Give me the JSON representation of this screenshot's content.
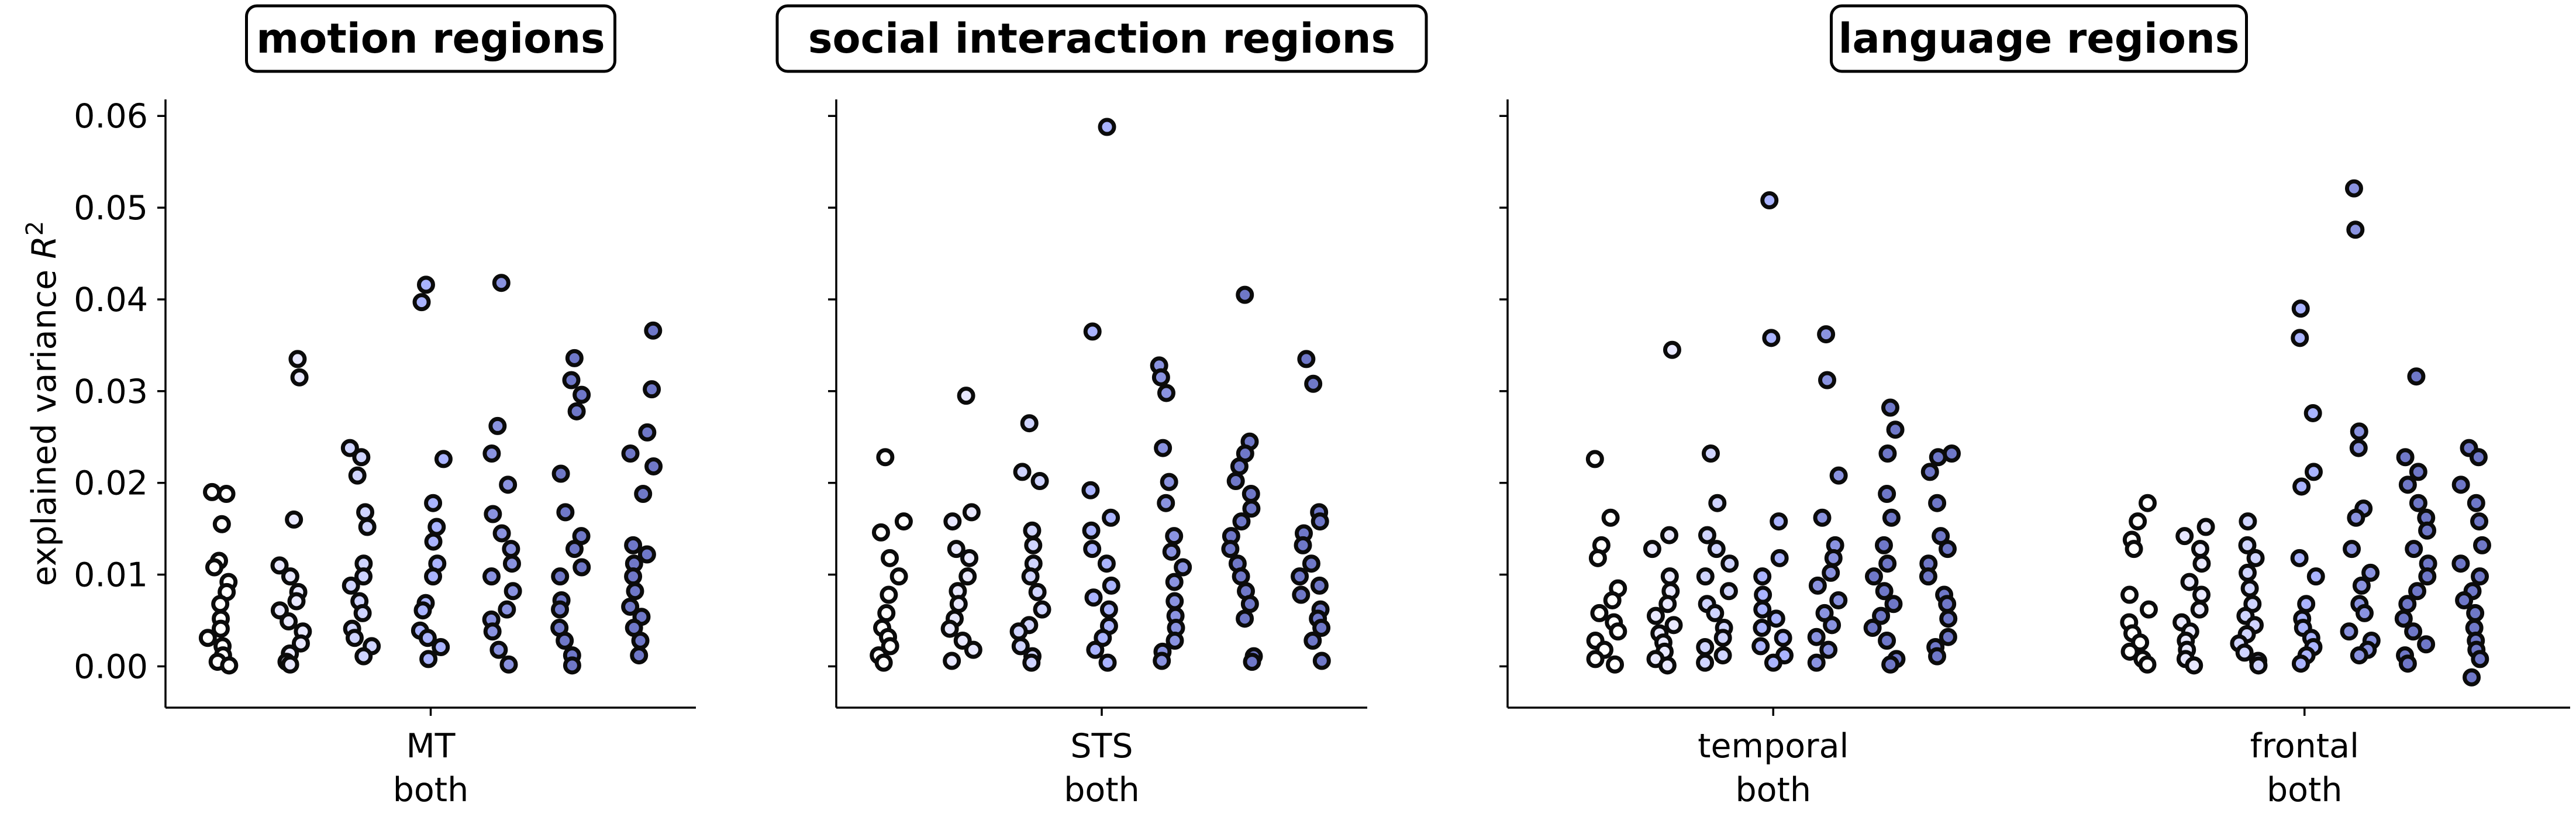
{
  "chart_data": {
    "type": "scatter",
    "ylabel": "explained variance R²",
    "ylabel_text": "explained variance ",
    "ylabel_symbol": "R",
    "ylabel_exp": "2",
    "ylim": [
      -0.0045,
      0.0618
    ],
    "yticks": [
      "0.00",
      "0.01",
      "0.02",
      "0.03",
      "0.04",
      "0.05",
      "0.06"
    ],
    "ytick_values": [
      0.0,
      0.01,
      0.02,
      0.03,
      0.04,
      0.05,
      0.06
    ],
    "shared_y": true,
    "grid": false,
    "marker_color": "#1a1a2e",
    "marker_face_colors": [
      "#ffffff",
      "#e8e8ff",
      "#cfd4ff",
      "#aab4ff",
      "#8a93e0",
      "#6f78c8"
    ],
    "panels": [
      {
        "title": "motion regions",
        "groups": [
          {
            "label_top": "MT",
            "label_bottom": "both",
            "series": [
              {
                "values": [
                  0.019,
                  0.0188,
                  0.0155,
                  0.0115,
                  0.0108,
                  0.0092,
                  0.0081,
                  0.0068,
                  0.0052,
                  0.0041,
                  0.0031,
                  0.0022,
                  0.0012,
                  0.0005,
                  0.0001
                ]
              },
              {
                "values": [
                  0.0335,
                  0.0315,
                  0.016,
                  0.011,
                  0.0098,
                  0.0081,
                  0.0071,
                  0.0061,
                  0.0049,
                  0.0038,
                  0.0025,
                  0.0014,
                  0.0005,
                  0.0002
                ]
              },
              {
                "values": [
                  0.0238,
                  0.0228,
                  0.0208,
                  0.0168,
                  0.0152,
                  0.0112,
                  0.0098,
                  0.0088,
                  0.0071,
                  0.0058,
                  0.0041,
                  0.0031,
                  0.0022,
                  0.0011
                ]
              },
              {
                "values": [
                  0.0416,
                  0.0397,
                  0.0226,
                  0.0178,
                  0.0152,
                  0.0136,
                  0.0112,
                  0.0098,
                  0.0069,
                  0.0061,
                  0.0039,
                  0.0031,
                  0.0021,
                  0.0008
                ]
              },
              {
                "values": [
                  0.0418,
                  0.0262,
                  0.0232,
                  0.0198,
                  0.0166,
                  0.0145,
                  0.0128,
                  0.0112,
                  0.0098,
                  0.0082,
                  0.0062,
                  0.0051,
                  0.0038,
                  0.0018,
                  0.0002
                ]
              },
              {
                "values": [
                  0.0336,
                  0.0312,
                  0.0296,
                  0.0278,
                  0.021,
                  0.0168,
                  0.0142,
                  0.0128,
                  0.0108,
                  0.0098,
                  0.0072,
                  0.0062,
                  0.0042,
                  0.0028,
                  0.0012,
                  0.0001
                ]
              },
              {
                "values": [
                  0.0366,
                  0.0302,
                  0.0255,
                  0.0232,
                  0.0218,
                  0.0188,
                  0.0132,
                  0.0122,
                  0.0112,
                  0.0098,
                  0.0082,
                  0.0065,
                  0.0054,
                  0.0042,
                  0.0028,
                  0.0012
                ]
              }
            ]
          }
        ]
      },
      {
        "title": "social interaction regions",
        "groups": [
          {
            "label_top": "STS",
            "label_bottom": "both",
            "series": [
              {
                "values": [
                  0.0228,
                  0.0158,
                  0.0146,
                  0.0118,
                  0.0098,
                  0.0078,
                  0.0058,
                  0.0042,
                  0.0032,
                  0.0022,
                  0.0012,
                  0.0004
                ]
              },
              {
                "values": [
                  0.0295,
                  0.0168,
                  0.0158,
                  0.0128,
                  0.0118,
                  0.0098,
                  0.0082,
                  0.0068,
                  0.0052,
                  0.0041,
                  0.0028,
                  0.0018,
                  0.0006
                ]
              },
              {
                "values": [
                  0.0265,
                  0.0212,
                  0.0202,
                  0.0148,
                  0.0132,
                  0.0112,
                  0.0098,
                  0.0081,
                  0.0062,
                  0.0045,
                  0.0038,
                  0.0022,
                  0.0011,
                  0.0004
                ]
              },
              {
                "values": [
                  0.0588,
                  0.0365,
                  0.0192,
                  0.0162,
                  0.0148,
                  0.0128,
                  0.0112,
                  0.0088,
                  0.0075,
                  0.0062,
                  0.0044,
                  0.0031,
                  0.0018,
                  0.0004
                ]
              },
              {
                "values": [
                  0.0328,
                  0.0315,
                  0.0298,
                  0.0238,
                  0.0201,
                  0.0178,
                  0.0142,
                  0.0125,
                  0.0108,
                  0.0092,
                  0.0071,
                  0.0055,
                  0.0042,
                  0.0028,
                  0.0016,
                  0.0006
                ]
              },
              {
                "values": [
                  0.0405,
                  0.0245,
                  0.0232,
                  0.0218,
                  0.0202,
                  0.0188,
                  0.0172,
                  0.0158,
                  0.0142,
                  0.0128,
                  0.0112,
                  0.0098,
                  0.0082,
                  0.0068,
                  0.0052,
                  0.0011,
                  0.0005
                ]
              },
              {
                "values": [
                  0.0335,
                  0.0308,
                  0.0168,
                  0.0158,
                  0.0145,
                  0.0132,
                  0.0112,
                  0.0098,
                  0.0088,
                  0.0078,
                  0.0062,
                  0.0052,
                  0.0042,
                  0.0028,
                  0.0006
                ]
              }
            ]
          }
        ]
      },
      {
        "title": "language regions",
        "groups": [
          {
            "label_top": "temporal",
            "label_bottom": "both",
            "series": [
              {
                "values": [
                  0.0226,
                  0.0162,
                  0.0132,
                  0.0118,
                  0.0085,
                  0.0072,
                  0.0058,
                  0.0048,
                  0.0038,
                  0.0028,
                  0.0018,
                  0.0008,
                  0.0002
                ]
              },
              {
                "values": [
                  0.0345,
                  0.0143,
                  0.0128,
                  0.0098,
                  0.0082,
                  0.0068,
                  0.0055,
                  0.0045,
                  0.0036,
                  0.0026,
                  0.0016,
                  0.0008,
                  0.0001
                ]
              },
              {
                "values": [
                  0.0232,
                  0.0178,
                  0.0143,
                  0.0128,
                  0.0112,
                  0.0098,
                  0.0082,
                  0.0068,
                  0.0058,
                  0.0042,
                  0.0031,
                  0.0021,
                  0.0012,
                  0.0004
                ]
              },
              {
                "values": [
                  0.0508,
                  0.0358,
                  0.0158,
                  0.0118,
                  0.0098,
                  0.0078,
                  0.0062,
                  0.0052,
                  0.0042,
                  0.0031,
                  0.0022,
                  0.0012,
                  0.0004
                ]
              },
              {
                "values": [
                  0.0362,
                  0.0312,
                  0.0208,
                  0.0162,
                  0.0132,
                  0.0118,
                  0.0102,
                  0.0088,
                  0.0072,
                  0.0058,
                  0.0045,
                  0.0032,
                  0.0018,
                  0.0004
                ]
              },
              {
                "values": [
                  0.0282,
                  0.0258,
                  0.0232,
                  0.0188,
                  0.0162,
                  0.0132,
                  0.0112,
                  0.0098,
                  0.0082,
                  0.0068,
                  0.0055,
                  0.0042,
                  0.0028,
                  0.0008,
                  0.0002
                ]
              },
              {
                "values": [
                  0.0232,
                  0.0228,
                  0.0212,
                  0.0178,
                  0.0142,
                  0.0128,
                  0.0112,
                  0.0098,
                  0.0078,
                  0.0068,
                  0.0052,
                  0.0032,
                  0.0021,
                  0.0011
                ]
              }
            ]
          },
          {
            "label_top": "frontal",
            "label_bottom": "both",
            "series": [
              {
                "values": [
                  0.0178,
                  0.0158,
                  0.0138,
                  0.0128,
                  0.0078,
                  0.0062,
                  0.0048,
                  0.0036,
                  0.0026,
                  0.0016,
                  0.0008,
                  0.0002
                ]
              },
              {
                "values": [
                  0.0152,
                  0.0142,
                  0.0128,
                  0.0112,
                  0.0092,
                  0.0078,
                  0.0062,
                  0.0048,
                  0.0038,
                  0.0028,
                  0.0018,
                  0.0008,
                  0.0001
                ]
              },
              {
                "values": [
                  0.0158,
                  0.0132,
                  0.0118,
                  0.0102,
                  0.0085,
                  0.0068,
                  0.0055,
                  0.0045,
                  0.0035,
                  0.0025,
                  0.0015,
                  0.0006,
                  0.0001
                ]
              },
              {
                "values": [
                  0.039,
                  0.0358,
                  0.0276,
                  0.0212,
                  0.0196,
                  0.0118,
                  0.0098,
                  0.0068,
                  0.0052,
                  0.0042,
                  0.0031,
                  0.0021,
                  0.0012,
                  0.0003
                ]
              },
              {
                "values": [
                  0.0521,
                  0.0476,
                  0.0256,
                  0.0238,
                  0.0172,
                  0.0162,
                  0.0128,
                  0.0102,
                  0.0088,
                  0.0068,
                  0.0058,
                  0.0038,
                  0.0028,
                  0.0018,
                  0.0012
                ]
              },
              {
                "values": [
                  0.0316,
                  0.0228,
                  0.0212,
                  0.0198,
                  0.0178,
                  0.0162,
                  0.0148,
                  0.0128,
                  0.0112,
                  0.0098,
                  0.0082,
                  0.0068,
                  0.0052,
                  0.0038,
                  0.0024,
                  0.0012,
                  0.0003
                ]
              },
              {
                "values": [
                  0.0238,
                  0.0228,
                  0.0198,
                  0.0178,
                  0.0158,
                  0.0132,
                  0.0112,
                  0.0098,
                  0.0082,
                  0.0072,
                  0.0058,
                  0.0042,
                  0.0028,
                  0.0018,
                  0.0008,
                  -0.0012
                ]
              }
            ]
          }
        ]
      }
    ]
  }
}
